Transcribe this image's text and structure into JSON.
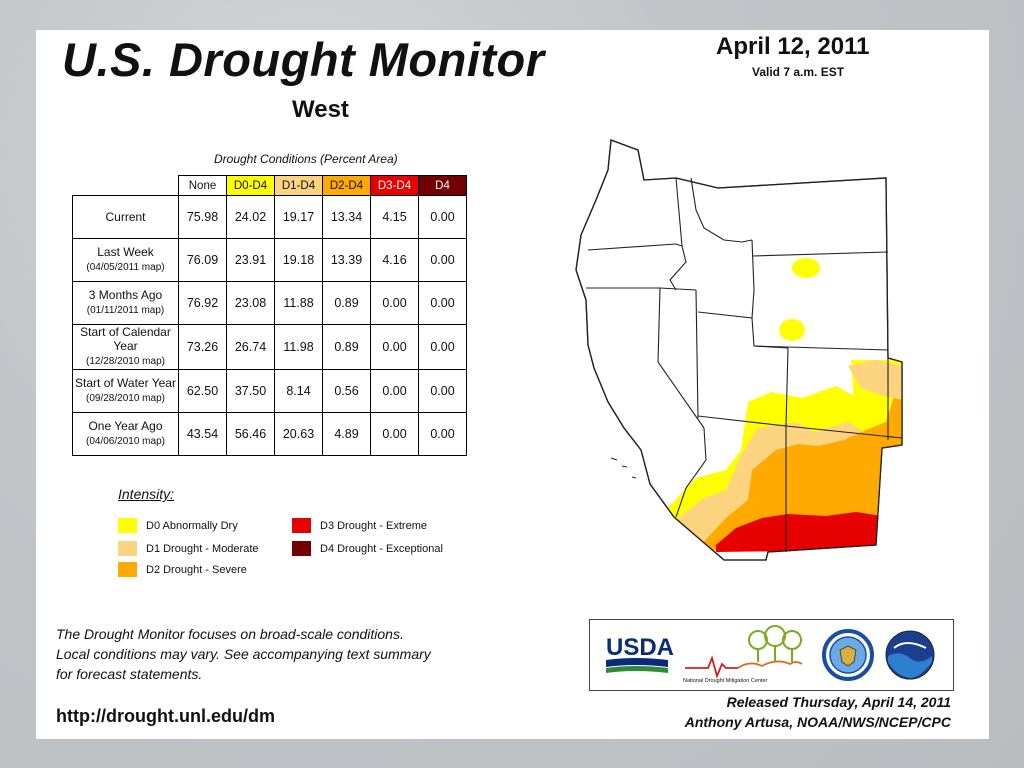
{
  "header": {
    "title": "U.S. Drought Monitor",
    "date": "April 12, 2011",
    "valid": "Valid 7 a.m. EST",
    "region": "West"
  },
  "table": {
    "caption": "Drought Conditions (Percent Area)",
    "columns": [
      {
        "label": "None",
        "color": "#ffffff",
        "text_color": "#111111"
      },
      {
        "label": "D0-D4",
        "color": "#ffff00",
        "text_color": "#111111"
      },
      {
        "label": "D1-D4",
        "color": "#fcd37f",
        "text_color": "#111111"
      },
      {
        "label": "D2-D4",
        "color": "#ffaa00",
        "text_color": "#111111"
      },
      {
        "label": "D3-D4",
        "color": "#e60000",
        "text_color": "#ffffff"
      },
      {
        "label": "D4",
        "color": "#730000",
        "text_color": "#ffffff"
      }
    ],
    "rows": [
      {
        "label": "Current",
        "sub": "",
        "values": [
          "75.98",
          "24.02",
          "19.17",
          "13.34",
          "4.15",
          "0.00"
        ]
      },
      {
        "label": "Last Week",
        "sub": "(04/05/2011 map)",
        "values": [
          "76.09",
          "23.91",
          "19.18",
          "13.39",
          "4.16",
          "0.00"
        ]
      },
      {
        "label": "3 Months Ago",
        "sub": "(01/11/2011 map)",
        "values": [
          "76.92",
          "23.08",
          "11.88",
          "0.89",
          "0.00",
          "0.00"
        ]
      },
      {
        "label": "Start of Calendar Year",
        "sub": "(12/28/2010 map)",
        "values": [
          "73.26",
          "26.74",
          "11.98",
          "0.89",
          "0.00",
          "0.00"
        ]
      },
      {
        "label": "Start of Water Year",
        "sub": "(09/28/2010 map)",
        "values": [
          "62.50",
          "37.50",
          "8.14",
          "0.56",
          "0.00",
          "0.00"
        ]
      },
      {
        "label": "One Year Ago",
        "sub": "(04/06/2010 map)",
        "values": [
          "43.54",
          "56.46",
          "20.63",
          "4.89",
          "0.00",
          "0.00"
        ]
      }
    ]
  },
  "legend": {
    "title": "Intensity:",
    "items": [
      {
        "label": "D0 Abnormally Dry",
        "color": "#ffff00"
      },
      {
        "label": "D1 Drought - Moderate",
        "color": "#fcd37f"
      },
      {
        "label": "D2 Drought - Severe",
        "color": "#ffaa00"
      },
      {
        "label": "D3 Drought - Extreme",
        "color": "#e60000"
      },
      {
        "label": "D4 Drought - Exceptional",
        "color": "#730000"
      }
    ]
  },
  "footer": {
    "note_lines": [
      "The Drought Monitor focuses on broad-scale conditions.",
      "Local conditions may vary. See accompanying text summary",
      "for forecast statements."
    ],
    "url": "http://drought.unl.edu/dm",
    "released": "Released Thursday, April 14, 2011",
    "author": "Anthony Artusa, NOAA/NWS/NCEP/CPC"
  },
  "logos": {
    "usda": "USDA",
    "ndmc": "National Drought Mitigation Center",
    "icons": [
      "usda-logo",
      "ndmc-logo",
      "doc-seal",
      "noaa-logo"
    ]
  }
}
